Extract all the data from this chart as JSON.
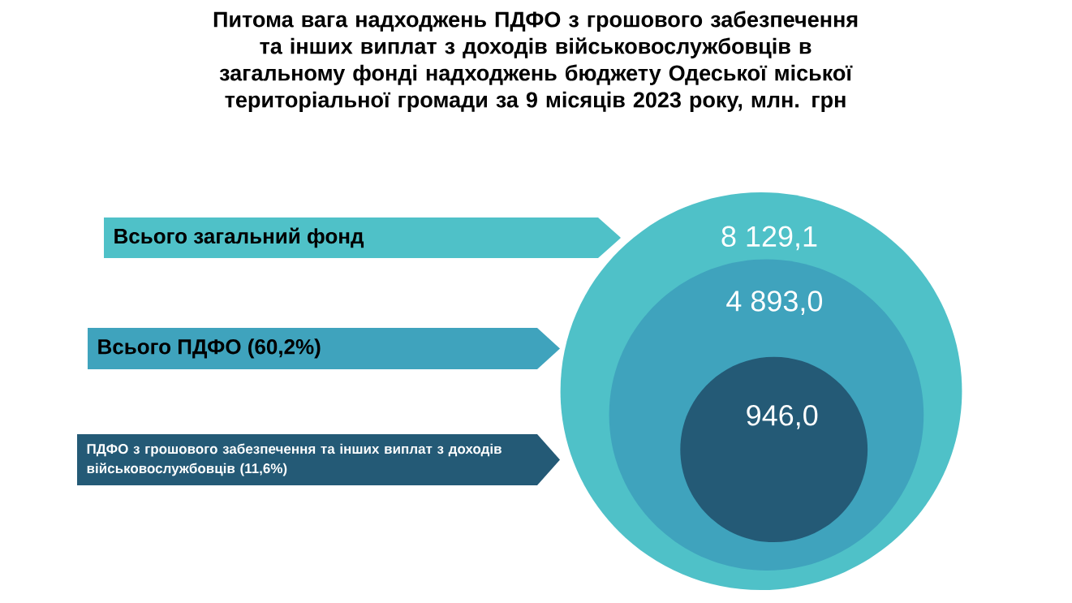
{
  "chart_data": {
    "type": "other",
    "title": "Питома вага надходжень ПДФО з грошового забезпечення та інших виплат з доходів військовослужбовців в загальному фонді надходжень бюджету Одеської міської територіальної громади за 9 місяців 2023 року, млн. грн",
    "categories": [
      "Всього загальний фонд",
      "Всього ПДФО (60,2%)",
      "ПДФО з грошового забезпечення та інших виплат з доходів військовослужбовців (11,6%)"
    ],
    "values": [
      8129.1,
      4893.0,
      946.0
    ],
    "value_labels": [
      "8 129,1",
      "4 893,0",
      "946,0"
    ],
    "colors": [
      "#4fc1c8",
      "#3fa3bd",
      "#245a76"
    ]
  }
}
